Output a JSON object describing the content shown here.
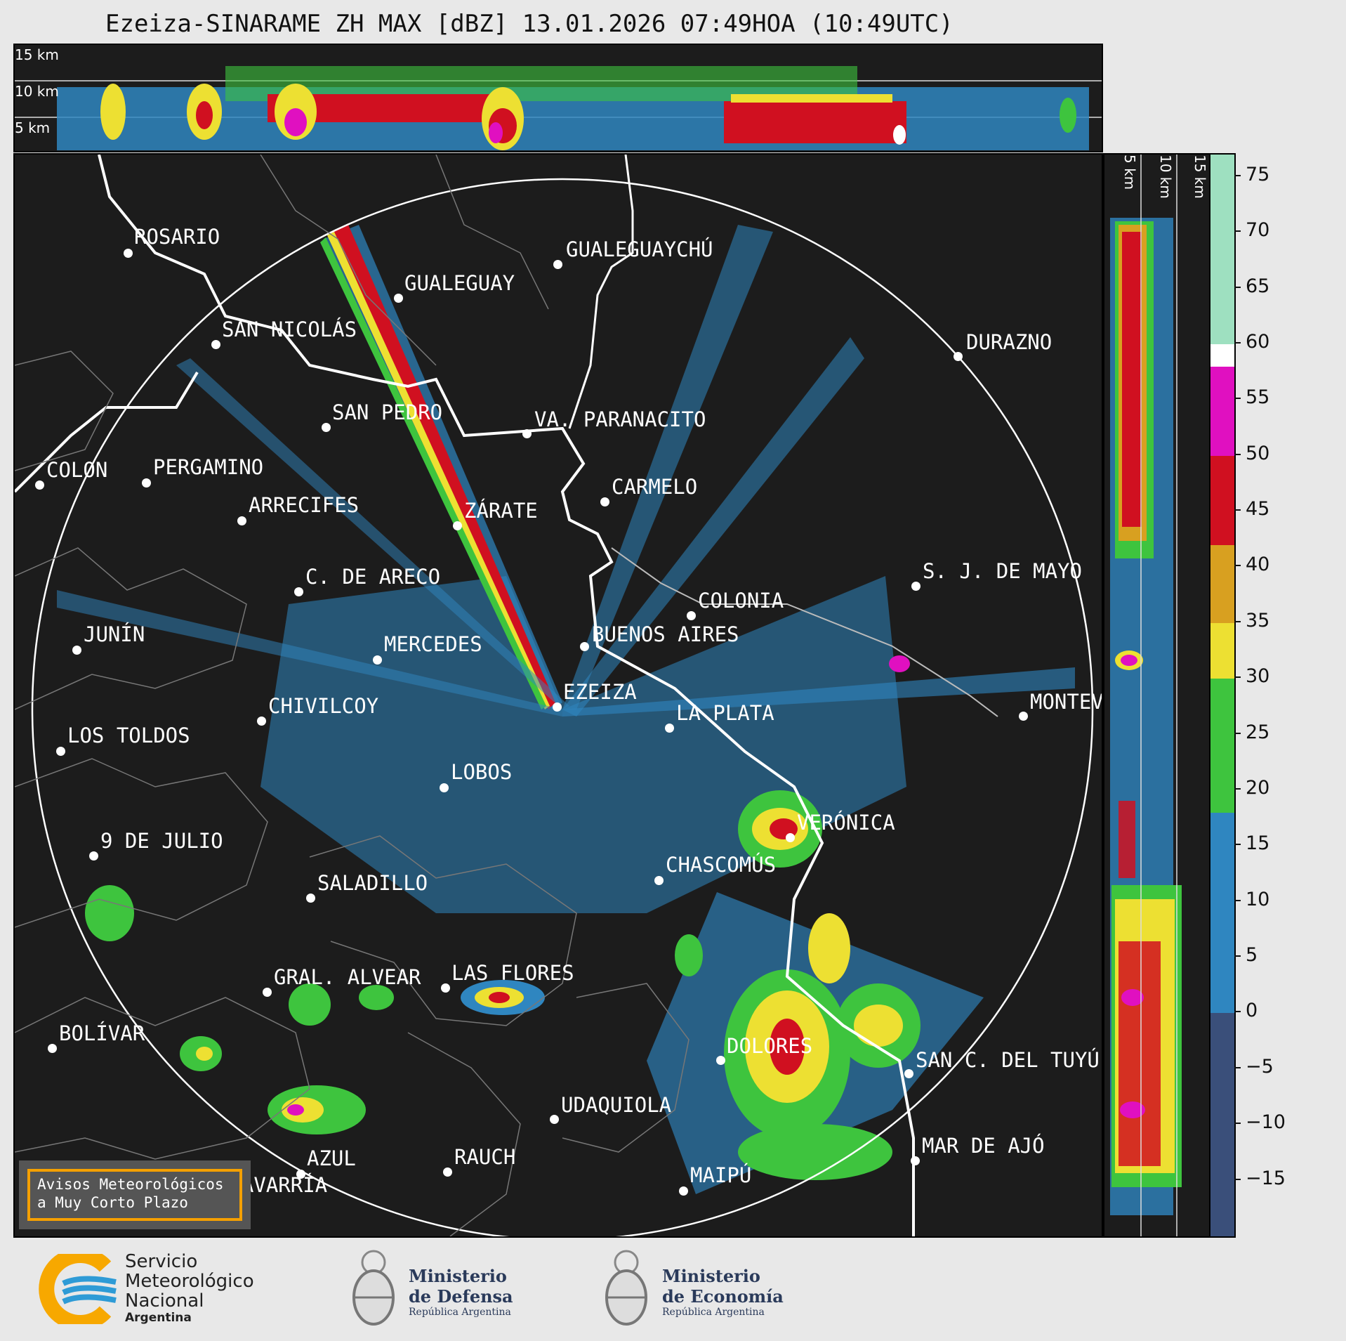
{
  "title": "Ezeiza-SINARAME ZH MAX [dBZ] 13.01.2026 07:49HOA (10:49UTC)",
  "top_panel": {
    "altitudes": [
      "15 km",
      "10 km",
      "5 km"
    ]
  },
  "side_panel": {
    "altitudes": [
      "5 km",
      "10 km",
      "15 km"
    ]
  },
  "cities": [
    {
      "label": "ROSARIO"
    },
    {
      "label": "GUALEGUAYCHÚ"
    },
    {
      "label": "GUALEGUAY"
    },
    {
      "label": "SAN NICOLÁS"
    },
    {
      "label": "DURAZNO"
    },
    {
      "label": "SAN PEDRO"
    },
    {
      "label": "VA. PARANACITO"
    },
    {
      "label": "COLON"
    },
    {
      "label": "PERGAMINO"
    },
    {
      "label": "CARMELO"
    },
    {
      "label": "ARRECIFES"
    },
    {
      "label": "ZÁRATE"
    },
    {
      "label": "S. J. DE MAYO"
    },
    {
      "label": "C. DE ARECO"
    },
    {
      "label": "COLONIA"
    },
    {
      "label": "JUNÍN"
    },
    {
      "label": "BUENOS AIRES"
    },
    {
      "label": "MERCEDES"
    },
    {
      "label": "EZEIZA"
    },
    {
      "label": "MONTEV"
    },
    {
      "label": "CHIVILCOY"
    },
    {
      "label": "LA PLATA"
    },
    {
      "label": "LOS TOLDOS"
    },
    {
      "label": "LOBOS"
    },
    {
      "label": "VERÓNICA"
    },
    {
      "label": "9 DE JULIO"
    },
    {
      "label": "CHASCOMÚS"
    },
    {
      "label": "SALADILLO"
    },
    {
      "label": "GRAL. ALVEAR"
    },
    {
      "label": "LAS FLORES"
    },
    {
      "label": "BOLÍVAR"
    },
    {
      "label": "DOLORES"
    },
    {
      "label": "SAN C. DEL TUYÚ"
    },
    {
      "label": "UDAQUIOLA"
    },
    {
      "label": "MAR DE AJÓ"
    },
    {
      "label": "AZUL"
    },
    {
      "label": "RAUCH"
    },
    {
      "label": "OLAVARRÍA"
    },
    {
      "label": "MAIPÚ"
    }
  ],
  "colorbar": {
    "unit": "dBZ",
    "min": -20,
    "max": 77,
    "ticks": [
      "75",
      "70",
      "65",
      "60",
      "55",
      "50",
      "45",
      "40",
      "35",
      "30",
      "25",
      "20",
      "15",
      "10",
      "5",
      "0",
      "−5",
      "−10",
      "−15"
    ],
    "bands": [
      {
        "from": -20,
        "to": 0,
        "color": "#3a4f7a"
      },
      {
        "from": 0,
        "to": 18,
        "color": "#2f86c0"
      },
      {
        "from": 18,
        "to": 30,
        "color": "#3ec43e"
      },
      {
        "from": 30,
        "to": 35,
        "color": "#ede032"
      },
      {
        "from": 35,
        "to": 42,
        "color": "#d8a020"
      },
      {
        "from": 42,
        "to": 50,
        "color": "#d01020"
      },
      {
        "from": 50,
        "to": 58,
        "color": "#e010c0"
      },
      {
        "from": 58,
        "to": 60,
        "color": "#ffffff"
      },
      {
        "from": 60,
        "to": 77,
        "color": "#9ee0c0"
      }
    ]
  },
  "avisos": {
    "line1": "Avisos Meteorológicos",
    "line2": "a Muy Corto Plazo"
  },
  "logos": {
    "smn": {
      "line1": "Servicio",
      "line2": "Meteorológico",
      "line3": "Nacional",
      "line4": "Argentina",
      "colors": [
        "#f7a800",
        "#2e9bd6"
      ]
    },
    "defensa": {
      "line1": "Ministerio",
      "line2": "de Defensa",
      "line3": "República Argentina"
    },
    "economia": {
      "line1": "Ministerio",
      "line2": "de Economía",
      "line3": "República Argentina"
    }
  }
}
